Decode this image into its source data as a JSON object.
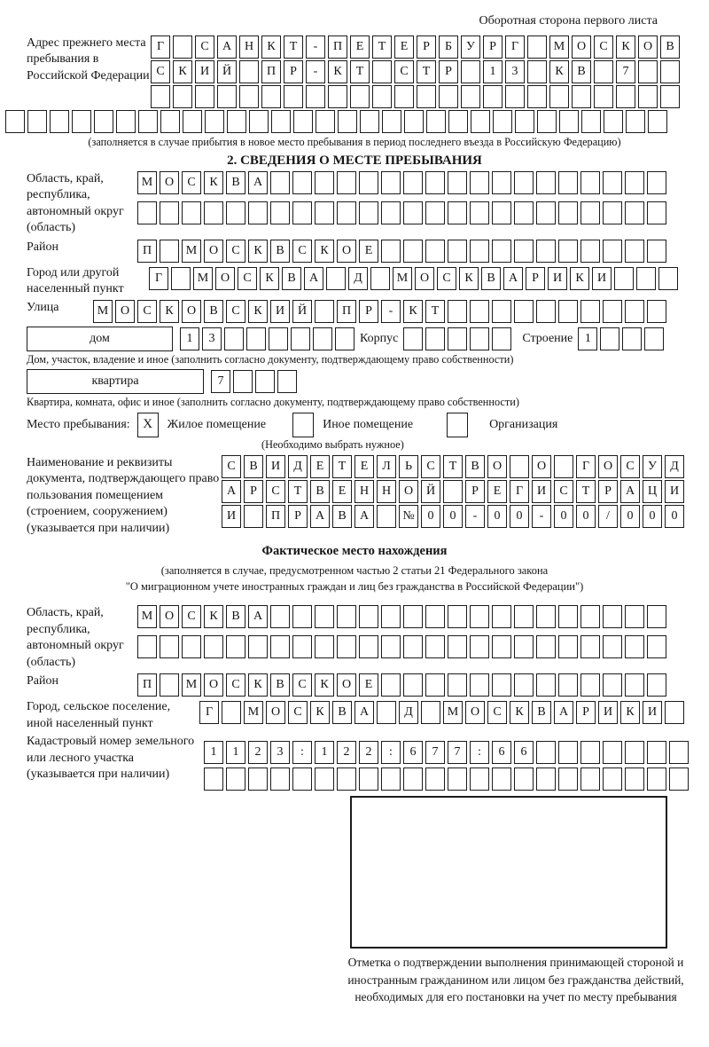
{
  "page": {
    "corner_note": "Оборотная сторона первого листа"
  },
  "prev_address": {
    "label": "Адрес прежнего места пребывания в Российской Федерации",
    "row1": [
      "Г",
      "",
      "С",
      "А",
      "Н",
      "К",
      "Т",
      "-",
      "П",
      "Е",
      "Т",
      "Е",
      "Р",
      "Б",
      "У",
      "Р",
      "Г",
      "",
      "М",
      "О",
      "С",
      "К",
      "О",
      "В"
    ],
    "row2": [
      "С",
      "К",
      "И",
      "Й",
      "",
      "П",
      "Р",
      "-",
      "К",
      "Т",
      "",
      "С",
      "Т",
      "Р",
      "",
      "1",
      "3",
      "",
      "К",
      "В",
      "",
      "7",
      "",
      ""
    ],
    "row3": [
      "",
      "",
      "",
      "",
      "",
      "",
      "",
      "",
      "",
      "",
      "",
      "",
      "",
      "",
      "",
      "",
      "",
      "",
      "",
      "",
      "",
      "",
      "",
      ""
    ],
    "row4": [
      "",
      "",
      "",
      "",
      "",
      "",
      "",
      "",
      "",
      "",
      "",
      "",
      "",
      "",
      "",
      "",
      "",
      "",
      "",
      "",
      "",
      "",
      "",
      "",
      "",
      "",
      "",
      "",
      "",
      ""
    ],
    "note": "(заполняется в случае прибытия в новое место пребывания в период последнего въезда в Российскую Федерацию)"
  },
  "section2": {
    "title": "2. СВЕДЕНИЯ О МЕСТЕ ПРЕБЫВАНИЯ",
    "region": {
      "label": "Область, край, республика, автономный округ (область)",
      "row1": [
        "М",
        "О",
        "С",
        "К",
        "В",
        "А",
        "",
        "",
        "",
        "",
        "",
        "",
        "",
        "",
        "",
        "",
        "",
        "",
        "",
        "",
        "",
        "",
        "",
        ""
      ],
      "row2": [
        "",
        "",
        "",
        "",
        "",
        "",
        "",
        "",
        "",
        "",
        "",
        "",
        "",
        "",
        "",
        "",
        "",
        "",
        "",
        "",
        "",
        "",
        "",
        ""
      ]
    },
    "district": {
      "label": "Район",
      "row": [
        "П",
        "",
        "М",
        "О",
        "С",
        "К",
        "В",
        "С",
        "К",
        "О",
        "Е",
        "",
        "",
        "",
        "",
        "",
        "",
        "",
        "",
        "",
        "",
        "",
        "",
        ""
      ]
    },
    "city": {
      "label": "Город или другой населенный пункт",
      "row": [
        "Г",
        "",
        "М",
        "О",
        "С",
        "К",
        "В",
        "А",
        "",
        "Д",
        "",
        "М",
        "О",
        "С",
        "К",
        "В",
        "А",
        "Р",
        "И",
        "К",
        "И",
        "",
        "",
        ""
      ]
    },
    "street": {
      "label": "Улица",
      "row": [
        "М",
        "О",
        "С",
        "К",
        "О",
        "В",
        "С",
        "К",
        "И",
        "Й",
        "",
        "П",
        "Р",
        "-",
        "К",
        "Т",
        "",
        "",
        "",
        "",
        "",
        "",
        "",
        "",
        "",
        ""
      ]
    },
    "house": {
      "box_label": "дом",
      "number_cells": [
        "1",
        "3",
        "",
        "",
        "",
        "",
        "",
        ""
      ],
      "korpus_label": "Корпус",
      "korpus_cells": [
        "",
        "",
        "",
        "",
        ""
      ],
      "stroenie_label": "Строение",
      "stroenie_cells": [
        "1",
        "",
        "",
        ""
      ],
      "note": "Дом, участок, владение и иное (заполнить согласно документу, подтверждающему право собственности)"
    },
    "apartment": {
      "box_label": "квартира",
      "cells": [
        "7",
        "",
        "",
        ""
      ],
      "note": "Квартира, комната, офис и иное (заполнить согласно документу, подтверждающему право собственности)"
    },
    "stay_type": {
      "label": "Место пребывания:",
      "options": [
        {
          "label": "Жилое помещение",
          "mark": "X"
        },
        {
          "label": "Иное помещение",
          "mark": ""
        },
        {
          "label": "Организация",
          "mark": ""
        }
      ],
      "note": "(Необходимо выбрать нужное)"
    },
    "document": {
      "label": "Наименование и реквизиты документа, подтверждающего право пользования помещением (строением, сооружением) (указывается при наличии)",
      "row1": [
        "С",
        "В",
        "И",
        "Д",
        "Е",
        "Т",
        "Е",
        "Л",
        "Ь",
        "С",
        "Т",
        "В",
        "О",
        "",
        "О",
        "",
        "Г",
        "О",
        "С",
        "У",
        "Д"
      ],
      "row2": [
        "А",
        "Р",
        "С",
        "Т",
        "В",
        "Е",
        "Н",
        "Н",
        "О",
        "Й",
        "",
        "Р",
        "Е",
        "Г",
        "И",
        "С",
        "Т",
        "Р",
        "А",
        "Ц",
        "И"
      ],
      "row3": [
        "И",
        "",
        "П",
        "Р",
        "А",
        "В",
        "А",
        "",
        "№",
        "0",
        "0",
        "-",
        "0",
        "0",
        "-",
        "0",
        "0",
        "/",
        "0",
        "0",
        "0"
      ]
    }
  },
  "actual_location": {
    "title": "Фактическое место нахождения",
    "note_line1": "(заполняется в случае, предусмотренном частью 2 статьи 21 Федерального закона",
    "note_line2": "\"О миграционном учете иностранных граждан и лиц без гражданства в Российской Федерации\")",
    "region": {
      "label": "Область, край, республика, автономный округ (область)",
      "row1": [
        "М",
        "О",
        "С",
        "К",
        "В",
        "А",
        "",
        "",
        "",
        "",
        "",
        "",
        "",
        "",
        "",
        "",
        "",
        "",
        "",
        "",
        "",
        "",
        "",
        ""
      ],
      "row2": [
        "",
        "",
        "",
        "",
        "",
        "",
        "",
        "",
        "",
        "",
        "",
        "",
        "",
        "",
        "",
        "",
        "",
        "",
        "",
        "",
        "",
        "",
        "",
        ""
      ]
    },
    "district": {
      "label": "Район",
      "row": [
        "П",
        "",
        "М",
        "О",
        "С",
        "К",
        "В",
        "С",
        "К",
        "О",
        "Е",
        "",
        "",
        "",
        "",
        "",
        "",
        "",
        "",
        "",
        "",
        "",
        "",
        ""
      ]
    },
    "city": {
      "label": "Город, сельское поселение, иной населенный пункт",
      "row": [
        "Г",
        "",
        "М",
        "О",
        "С",
        "К",
        "В",
        "А",
        "",
        "Д",
        "",
        "М",
        "О",
        "С",
        "К",
        "В",
        "А",
        "Р",
        "И",
        "К",
        "И",
        ""
      ]
    },
    "cadastral": {
      "label": "Кадастровый номер земельного или лесного участка (указывается при наличии)",
      "row1": [
        "1",
        "1",
        "2",
        "3",
        ":",
        "1",
        "2",
        "2",
        ":",
        "6",
        "7",
        "7",
        ":",
        "6",
        "6",
        "",
        "",
        "",
        "",
        "",
        "",
        ""
      ],
      "row2": [
        "",
        "",
        "",
        "",
        "",
        "",
        "",
        "",
        "",
        "",
        "",
        "",
        "",
        "",
        "",
        "",
        "",
        "",
        "",
        "",
        "",
        ""
      ]
    }
  },
  "confirmation": {
    "caption": "Отметка о подтверждении выполнения принимающей стороной и иностранным гражданином или лицом без гражданства действий, необходимых для его постановки на учет по месту пребывания"
  }
}
